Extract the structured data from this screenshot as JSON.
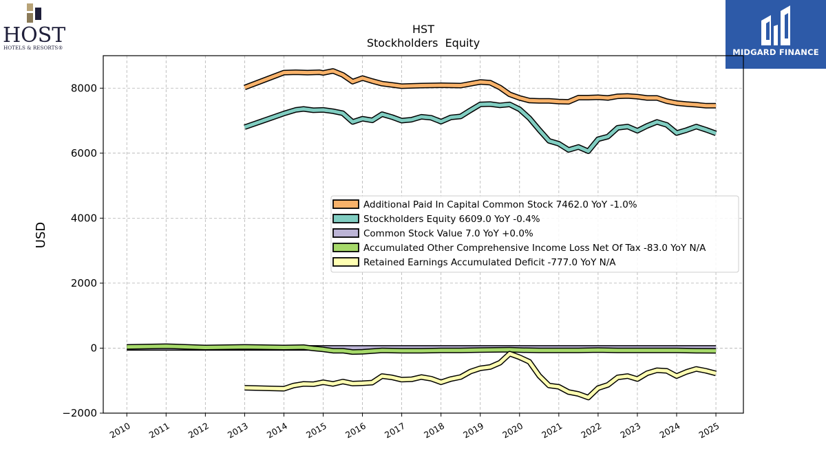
{
  "brand_left": {
    "name": "HOST",
    "tagline": "HOTELS & RESORTS®"
  },
  "brand_right": {
    "name": "MIDGARD FINANCE"
  },
  "colors": {
    "apic": "#f8b26a",
    "equity": "#80cdc1",
    "common": "#bcb4d6",
    "aoci": "#a6d96a",
    "retained": "#ffffb2",
    "outline": "#000000"
  },
  "chart_data": {
    "type": "line",
    "title": "HST",
    "subtitle": "Stockholders  Equity",
    "xlabel": "",
    "ylabel": "USD",
    "xlim": [
      2009.4,
      2025.7
    ],
    "ylim": [
      -2000,
      9000
    ],
    "yticks": [
      -2000,
      0,
      2000,
      4000,
      6000,
      8000
    ],
    "xticks": [
      "2010",
      "2011",
      "2012",
      "2013",
      "2014",
      "2015",
      "2016",
      "2017",
      "2018",
      "2019",
      "2020",
      "2021",
      "2022",
      "2023",
      "2024",
      "2025"
    ],
    "grid": true,
    "legend_position": "center-right",
    "series": [
      {
        "name": "Additional Paid In Capital Common Stock  7462.0 YoY -1.0%",
        "color_key": "apic",
        "points": [
          [
            2013.0,
            8020
          ],
          [
            2014.0,
            8480
          ],
          [
            2014.3,
            8490
          ],
          [
            2014.6,
            8480
          ],
          [
            2014.9,
            8490
          ],
          [
            2015.0,
            8470
          ],
          [
            2015.25,
            8530
          ],
          [
            2015.5,
            8410
          ],
          [
            2015.75,
            8200
          ],
          [
            2016.0,
            8310
          ],
          [
            2016.25,
            8220
          ],
          [
            2016.5,
            8140
          ],
          [
            2016.75,
            8100
          ],
          [
            2017.0,
            8060
          ],
          [
            2017.5,
            8080
          ],
          [
            2018.0,
            8090
          ],
          [
            2018.5,
            8080
          ],
          [
            2019.0,
            8190
          ],
          [
            2019.25,
            8170
          ],
          [
            2019.5,
            8020
          ],
          [
            2019.75,
            7810
          ],
          [
            2020.0,
            7700
          ],
          [
            2020.25,
            7620
          ],
          [
            2020.5,
            7610
          ],
          [
            2020.75,
            7610
          ],
          [
            2021.0,
            7590
          ],
          [
            2021.25,
            7580
          ],
          [
            2021.5,
            7710
          ],
          [
            2021.75,
            7710
          ],
          [
            2022.0,
            7720
          ],
          [
            2022.25,
            7700
          ],
          [
            2022.5,
            7750
          ],
          [
            2022.75,
            7760
          ],
          [
            2023.0,
            7740
          ],
          [
            2023.25,
            7700
          ],
          [
            2023.5,
            7700
          ],
          [
            2023.75,
            7600
          ],
          [
            2024.0,
            7540
          ],
          [
            2024.25,
            7510
          ],
          [
            2024.5,
            7490
          ],
          [
            2024.75,
            7460
          ],
          [
            2025.0,
            7462
          ]
        ]
      },
      {
        "name": "Stockholders Equity  6609.0 YoY -0.4%",
        "color_key": "equity",
        "points": [
          [
            2013.0,
            6800
          ],
          [
            2014.0,
            7220
          ],
          [
            2014.3,
            7330
          ],
          [
            2014.5,
            7360
          ],
          [
            2014.75,
            7320
          ],
          [
            2015.0,
            7330
          ],
          [
            2015.25,
            7290
          ],
          [
            2015.5,
            7230
          ],
          [
            2015.75,
            6960
          ],
          [
            2016.0,
            7060
          ],
          [
            2016.25,
            7010
          ],
          [
            2016.5,
            7200
          ],
          [
            2016.75,
            7110
          ],
          [
            2017.0,
            7000
          ],
          [
            2017.25,
            7030
          ],
          [
            2017.5,
            7120
          ],
          [
            2017.75,
            7090
          ],
          [
            2018.0,
            6970
          ],
          [
            2018.25,
            7100
          ],
          [
            2018.5,
            7130
          ],
          [
            2018.75,
            7320
          ],
          [
            2019.0,
            7500
          ],
          [
            2019.25,
            7510
          ],
          [
            2019.5,
            7470
          ],
          [
            2019.75,
            7500
          ],
          [
            2020.0,
            7350
          ],
          [
            2020.25,
            7080
          ],
          [
            2020.5,
            6720
          ],
          [
            2020.75,
            6380
          ],
          [
            2021.0,
            6290
          ],
          [
            2021.25,
            6100
          ],
          [
            2021.5,
            6190
          ],
          [
            2021.75,
            6060
          ],
          [
            2022.0,
            6430
          ],
          [
            2022.25,
            6510
          ],
          [
            2022.5,
            6780
          ],
          [
            2022.75,
            6820
          ],
          [
            2023.0,
            6690
          ],
          [
            2023.25,
            6840
          ],
          [
            2023.5,
            6960
          ],
          [
            2023.75,
            6870
          ],
          [
            2024.0,
            6620
          ],
          [
            2024.25,
            6710
          ],
          [
            2024.5,
            6820
          ],
          [
            2024.75,
            6720
          ],
          [
            2025.0,
            6609
          ]
        ]
      },
      {
        "name": "Common Stock Value  7.0 YoY +0.0%",
        "color_key": "common",
        "points": [
          [
            2010.0,
            8
          ],
          [
            2011.0,
            8
          ],
          [
            2012.0,
            8
          ],
          [
            2013.0,
            8
          ],
          [
            2014.0,
            8
          ],
          [
            2015.0,
            8
          ],
          [
            2016.0,
            8
          ],
          [
            2017.0,
            7
          ],
          [
            2018.0,
            7
          ],
          [
            2019.0,
            7
          ],
          [
            2020.0,
            7
          ],
          [
            2021.0,
            7
          ],
          [
            2022.0,
            7
          ],
          [
            2023.0,
            7
          ],
          [
            2024.0,
            7
          ],
          [
            2025.0,
            7
          ]
        ]
      },
      {
        "name": "Accumulated Other Comprehensive Income Loss Net Of Tax  -83.0 YoY N/A",
        "color_key": "aoci",
        "points": [
          [
            2010.0,
            40
          ],
          [
            2011.0,
            60
          ],
          [
            2012.0,
            20
          ],
          [
            2013.0,
            40
          ],
          [
            2014.0,
            20
          ],
          [
            2014.5,
            30
          ],
          [
            2014.75,
            -10
          ],
          [
            2015.0,
            -40
          ],
          [
            2015.25,
            -80
          ],
          [
            2015.5,
            -80
          ],
          [
            2015.75,
            -120
          ],
          [
            2016.0,
            -110
          ],
          [
            2016.5,
            -70
          ],
          [
            2017.0,
            -80
          ],
          [
            2017.5,
            -80
          ],
          [
            2018.0,
            -70
          ],
          [
            2018.5,
            -70
          ],
          [
            2019.0,
            -60
          ],
          [
            2019.75,
            -50
          ],
          [
            2020.0,
            -60
          ],
          [
            2020.5,
            -70
          ],
          [
            2021.0,
            -70
          ],
          [
            2021.5,
            -70
          ],
          [
            2022.0,
            -60
          ],
          [
            2022.5,
            -70
          ],
          [
            2023.0,
            -70
          ],
          [
            2023.5,
            -70
          ],
          [
            2024.0,
            -70
          ],
          [
            2024.5,
            -80
          ],
          [
            2025.0,
            -83
          ]
        ]
      },
      {
        "name": "Retained Earnings Accumulated Deficit  -777.0 YoY N/A",
        "color_key": "retained",
        "points": [
          [
            2013.0,
            -1220
          ],
          [
            2014.0,
            -1250
          ],
          [
            2014.25,
            -1150
          ],
          [
            2014.5,
            -1100
          ],
          [
            2014.75,
            -1110
          ],
          [
            2015.0,
            -1050
          ],
          [
            2015.25,
            -1100
          ],
          [
            2015.5,
            -1030
          ],
          [
            2015.75,
            -1090
          ],
          [
            2016.0,
            -1080
          ],
          [
            2016.25,
            -1060
          ],
          [
            2016.5,
            -860
          ],
          [
            2016.75,
            -900
          ],
          [
            2017.0,
            -970
          ],
          [
            2017.25,
            -960
          ],
          [
            2017.5,
            -890
          ],
          [
            2017.75,
            -940
          ],
          [
            2018.0,
            -1050
          ],
          [
            2018.25,
            -950
          ],
          [
            2018.5,
            -890
          ],
          [
            2018.75,
            -720
          ],
          [
            2019.0,
            -620
          ],
          [
            2019.25,
            -580
          ],
          [
            2019.5,
            -450
          ],
          [
            2019.75,
            -170
          ],
          [
            2020.0,
            -280
          ],
          [
            2020.25,
            -420
          ],
          [
            2020.5,
            -850
          ],
          [
            2020.75,
            -1150
          ],
          [
            2021.0,
            -1190
          ],
          [
            2021.25,
            -1350
          ],
          [
            2021.5,
            -1410
          ],
          [
            2021.75,
            -1520
          ],
          [
            2022.0,
            -1230
          ],
          [
            2022.25,
            -1130
          ],
          [
            2022.5,
            -900
          ],
          [
            2022.75,
            -860
          ],
          [
            2023.0,
            -950
          ],
          [
            2023.25,
            -770
          ],
          [
            2023.5,
            -680
          ],
          [
            2023.75,
            -700
          ],
          [
            2024.0,
            -860
          ],
          [
            2024.25,
            -730
          ],
          [
            2024.5,
            -640
          ],
          [
            2024.75,
            -700
          ],
          [
            2025.0,
            -777
          ]
        ]
      }
    ]
  }
}
